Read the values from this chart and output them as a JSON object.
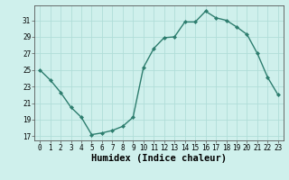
{
  "x": [
    0,
    1,
    2,
    3,
    4,
    5,
    6,
    7,
    8,
    9,
    10,
    11,
    12,
    13,
    14,
    15,
    16,
    17,
    18,
    19,
    20,
    21,
    22,
    23
  ],
  "y": [
    25.0,
    23.8,
    22.3,
    20.5,
    19.3,
    17.2,
    17.4,
    17.7,
    18.2,
    19.3,
    25.3,
    27.6,
    28.9,
    29.0,
    30.8,
    30.8,
    32.1,
    31.3,
    31.0,
    30.2,
    29.3,
    27.0,
    24.1,
    22.0
  ],
  "line_color": "#2d7d6e",
  "marker": "D",
  "marker_size": 2.0,
  "bg_color": "#cff0ec",
  "grid_color": "#b0ddd8",
  "xlabel": "Humidex (Indice chaleur)",
  "ylabel_ticks": [
    17,
    19,
    21,
    23,
    25,
    27,
    29,
    31
  ],
  "xtick_labels": [
    "0",
    "1",
    "2",
    "3",
    "4",
    "5",
    "6",
    "7",
    "8",
    "9",
    "10",
    "11",
    "12",
    "13",
    "14",
    "15",
    "16",
    "17",
    "18",
    "19",
    "20",
    "21",
    "22",
    "23"
  ],
  "ylim": [
    16.5,
    32.8
  ],
  "xlim": [
    -0.5,
    23.5
  ],
  "tick_fontsize": 5.5,
  "xlabel_fontsize": 7.5,
  "linewidth": 1.0
}
